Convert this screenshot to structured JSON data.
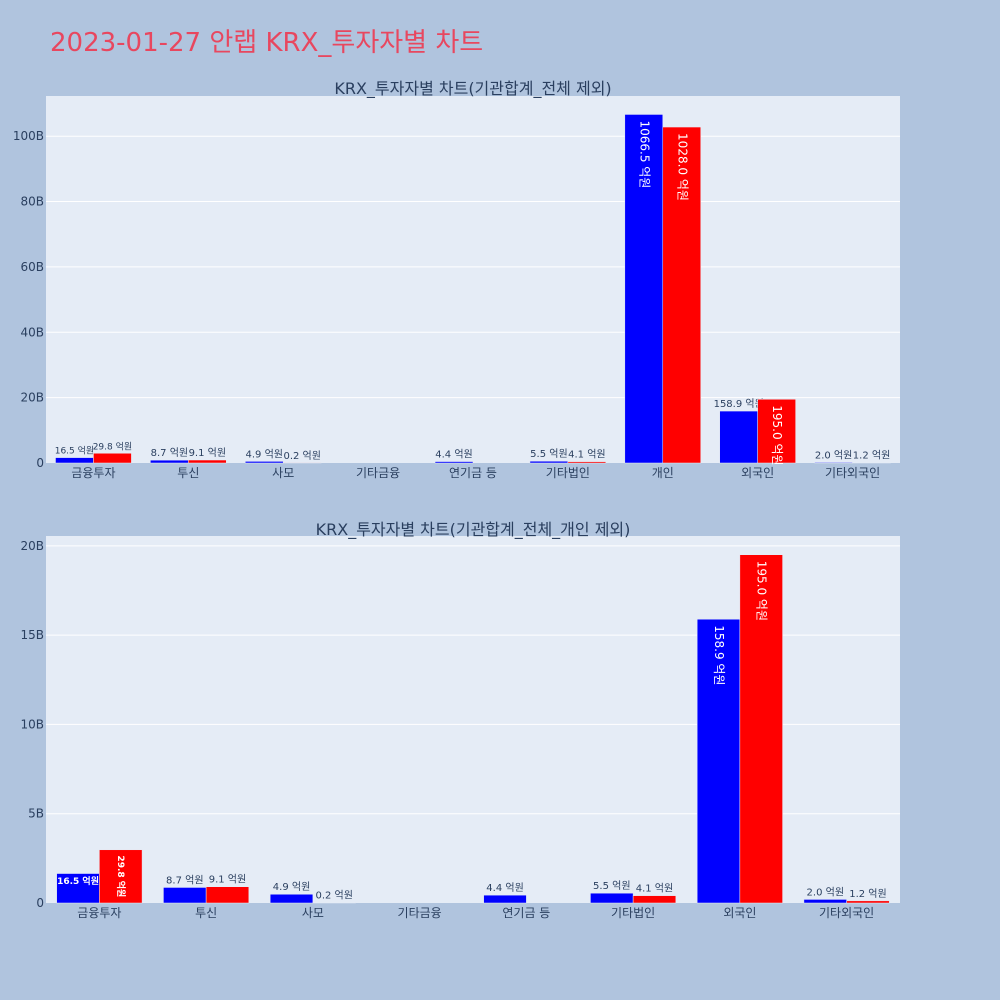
{
  "page": {
    "title": "2023-01-27 안랩 KRX_투자자별 차트"
  },
  "colors": {
    "background": "#b0c4de",
    "plot_bg": "#e5ecf6",
    "grid": "#ffffff",
    "series_blue": "#0000ff",
    "series_red": "#ff0000",
    "title": "#e8475f",
    "text": "#2a3f5f"
  },
  "chart_data": [
    {
      "type": "bar",
      "title": "KRX_투자자별 차트(기관합계_전체 제외)",
      "categories": [
        "금융투자",
        "투신",
        "사모",
        "기타금융",
        "연기금 등",
        "기타법인",
        "개인",
        "외국인",
        "기타외국인"
      ],
      "series": [
        {
          "color": "#0000ff",
          "values": [
            1.65,
            0.87,
            0.49,
            0,
            0.44,
            0.55,
            106.65,
            15.89,
            0.2
          ],
          "labels": [
            "16.5 억원",
            "8.7 억원",
            "4.9 억원",
            "",
            "4.4 억원",
            "5.5 억원",
            "1066.5 억원",
            "158.9 억원",
            "2.0 억원"
          ]
        },
        {
          "color": "#ff0000",
          "values": [
            2.98,
            0.91,
            0.02,
            0,
            0,
            0.41,
            102.8,
            19.5,
            0.12
          ],
          "labels": [
            "29.8 억원",
            "9.1 억원",
            "0.2 억원",
            "",
            "",
            "4.1 억원",
            "1028.0 억원",
            "195.0 억원",
            "1.2 억원"
          ]
        }
      ],
      "yticks": [
        "0",
        "20B",
        "40B",
        "60B",
        "80B",
        "100B"
      ],
      "ytick_values": [
        0,
        20,
        40,
        60,
        80,
        100
      ],
      "ylim": [
        0,
        112.3
      ],
      "grid": true
    },
    {
      "type": "bar",
      "title": "KRX_투자자별 차트(기관합계_전체_개인 제외)",
      "categories": [
        "금융투자",
        "투신",
        "사모",
        "기타금융",
        "연기금 등",
        "기타법인",
        "외국인",
        "기타외국인"
      ],
      "series": [
        {
          "color": "#0000ff",
          "values": [
            1.65,
            0.87,
            0.49,
            0,
            0.44,
            0.55,
            15.89,
            0.2
          ],
          "labels": [
            "16.5 억원",
            "8.7 억원",
            "4.9 억원",
            "",
            "4.4 억원",
            "5.5 억원",
            "158.9 억원",
            "2.0 억원"
          ]
        },
        {
          "color": "#ff0000",
          "values": [
            2.98,
            0.91,
            0.02,
            0,
            0,
            0.41,
            19.5,
            0.12
          ],
          "labels": [
            "29.8 억원",
            "9.1 억원",
            "0.2 억원",
            "",
            "",
            "4.1 억원",
            "195.0 억원",
            "1.2 억원"
          ]
        }
      ],
      "yticks": [
        "0",
        "5B",
        "10B",
        "15B",
        "20B"
      ],
      "ytick_values": [
        0,
        5,
        10,
        15,
        20
      ],
      "ylim": [
        0,
        20.55
      ],
      "grid": true
    }
  ]
}
